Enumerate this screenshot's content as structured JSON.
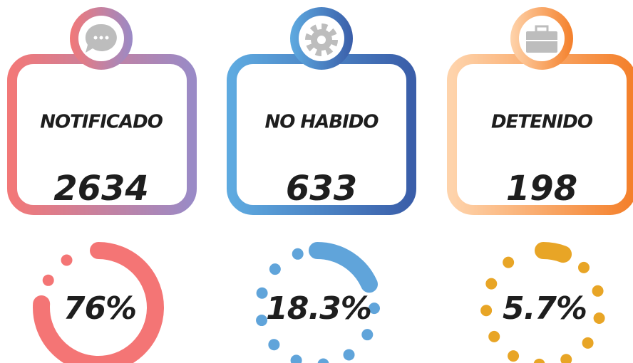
{
  "cards": [
    {
      "label": "NOTIFICADO",
      "value": 2634,
      "percent": 76,
      "percent_label": "76%",
      "gradient": [
        "#f27878",
        "#9a8ac6"
      ],
      "ring_color": "#f47575"
    },
    {
      "label": "NO HABIDO",
      "value": 633,
      "percent": 18.3,
      "percent_label": "18.3%",
      "gradient": [
        "#5eaae0",
        "#3a5ea9"
      ],
      "ring_color": "#60a4da"
    },
    {
      "label": "DETENIDO",
      "value": 198,
      "percent": 5.7,
      "percent_label": "5.7%",
      "gradient": [
        "#fed3ab",
        "#f4802b"
      ],
      "ring_color": "#e8a526"
    }
  ]
}
